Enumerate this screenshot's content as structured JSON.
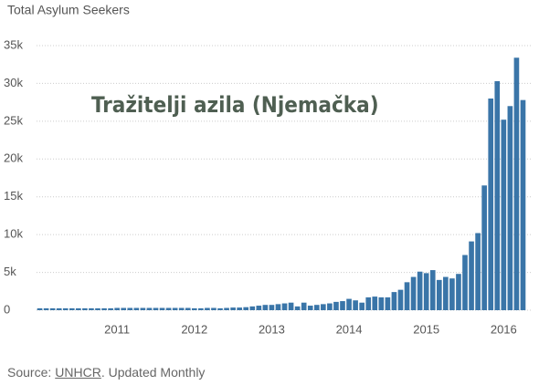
{
  "chart_data": {
    "type": "bar",
    "title": "Total Asylum Seekers",
    "annotation": "Tražitelji azila (Njemačka)",
    "source": [
      "Source:",
      "UNHCR",
      ". Updated Monthly"
    ],
    "categories": [
      null,
      null,
      null,
      null,
      null,
      null,
      null,
      null,
      null,
      null,
      null,
      null,
      "2011",
      null,
      null,
      null,
      null,
      null,
      null,
      null,
      null,
      null,
      null,
      null,
      "2012",
      null,
      null,
      null,
      null,
      null,
      null,
      null,
      null,
      null,
      null,
      null,
      "2013",
      null,
      null,
      null,
      null,
      null,
      null,
      null,
      null,
      null,
      null,
      null,
      "2014",
      null,
      null,
      null,
      null,
      null,
      null,
      null,
      null,
      null,
      null,
      null,
      "2015",
      null,
      null,
      null,
      null,
      null,
      null,
      null,
      null,
      null,
      null,
      null,
      "2016",
      null,
      null,
      null
    ],
    "values": [
      250,
      250,
      250,
      250,
      250,
      250,
      250,
      250,
      250,
      250,
      250,
      250,
      300,
      300,
      300,
      300,
      300,
      300,
      300,
      300,
      300,
      300,
      300,
      300,
      250,
      250,
      300,
      300,
      250,
      300,
      350,
      350,
      400,
      500,
      600,
      700,
      700,
      800,
      900,
      1000,
      500,
      1000,
      600,
      700,
      800,
      900,
      1100,
      1200,
      1500,
      1300,
      1000,
      1700,
      1800,
      1700,
      1700,
      2400,
      2700,
      3700,
      4400,
      5100,
      4900,
      5300,
      4000,
      4400,
      4200,
      4800,
      7300,
      9100,
      10200,
      16500,
      28000,
      30300,
      25200,
      27000,
      33400,
      27800
    ],
    "color": "#3a75a8",
    "ylim": [
      0,
      35000
    ],
    "yticks": [
      0,
      {
        "value": 5000,
        "label": "5k"
      },
      {
        "value": 10000,
        "label": "10k"
      },
      {
        "value": 15000,
        "label": "15k"
      },
      {
        "value": 20000,
        "label": "20k"
      },
      {
        "value": 25000,
        "label": "25k"
      },
      {
        "value": 30000,
        "label": "30k"
      },
      {
        "value": 35000,
        "label": "35k"
      }
    ],
    "grid": true
  }
}
